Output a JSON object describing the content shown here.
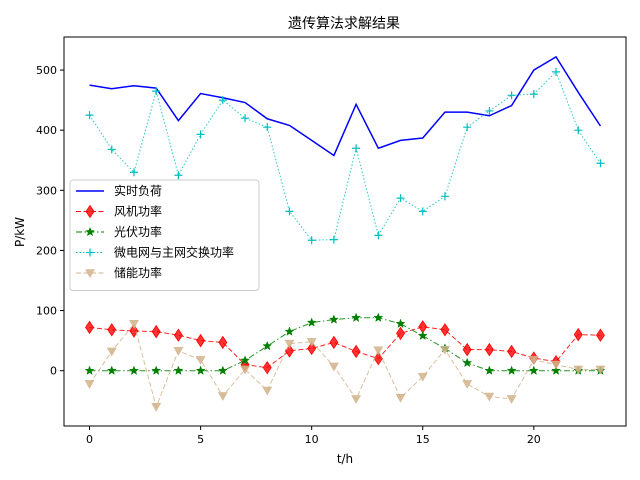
{
  "chart_data": {
    "type": "line",
    "title": "遗传算法求解结果",
    "xlabel": "t/h",
    "ylabel": "P/kW",
    "xlim": [
      -1.15,
      24.15
    ],
    "ylim": [
      -92,
      555
    ],
    "xticks": [
      0,
      5,
      10,
      15,
      20
    ],
    "yticks": [
      0,
      100,
      200,
      300,
      400,
      500
    ],
    "grid": false,
    "legend_position": "center-left",
    "x": [
      0,
      1,
      2,
      3,
      4,
      5,
      6,
      7,
      8,
      9,
      10,
      11,
      12,
      13,
      14,
      15,
      16,
      17,
      18,
      19,
      20,
      21,
      22,
      23
    ],
    "series": [
      {
        "name": "实时负荷",
        "color": "#0000ff",
        "line_style": "solid",
        "marker": "none",
        "values": [
          475,
          469,
          474,
          470,
          416,
          461,
          454,
          446,
          419,
          408,
          383,
          358,
          443,
          370,
          383,
          387,
          430,
          430,
          424,
          441,
          500,
          522,
          463,
          407
        ]
      },
      {
        "name": "风机功率",
        "color": "#ff0000",
        "line_style": "dashed",
        "marker": "diamond",
        "values": [
          72,
          68,
          66,
          65,
          59,
          50,
          47,
          10,
          5,
          33,
          37,
          47,
          32,
          20,
          62,
          73,
          68,
          35,
          35,
          32,
          21,
          15,
          60,
          59
        ]
      },
      {
        "name": "光伏功率",
        "color": "#008000",
        "line_style": "dashdot",
        "marker": "star",
        "values": [
          0,
          0,
          0,
          0,
          0,
          0,
          0,
          17,
          41,
          65,
          80,
          85,
          88,
          88,
          78,
          58,
          37,
          13,
          0,
          0,
          0,
          0,
          0,
          0
        ]
      },
      {
        "name": "微电网与主网交换功率",
        "color": "#00bfbf",
        "line_style": "dotted",
        "marker": "plus",
        "values": [
          425,
          368,
          330,
          465,
          325,
          393,
          450,
          420,
          405,
          265,
          217,
          218,
          370,
          225,
          287,
          265,
          290,
          405,
          432,
          458,
          460,
          497,
          400,
          345
        ]
      },
      {
        "name": "储能功率",
        "color": "#d2b48c",
        "line_style": "dashed",
        "marker": "triangle-down",
        "values": [
          -22,
          32,
          78,
          -60,
          33,
          18,
          -42,
          2,
          -33,
          45,
          48,
          7,
          -47,
          34,
          -45,
          -10,
          35,
          -22,
          -43,
          -47,
          18,
          10,
          2,
          2
        ]
      }
    ]
  }
}
